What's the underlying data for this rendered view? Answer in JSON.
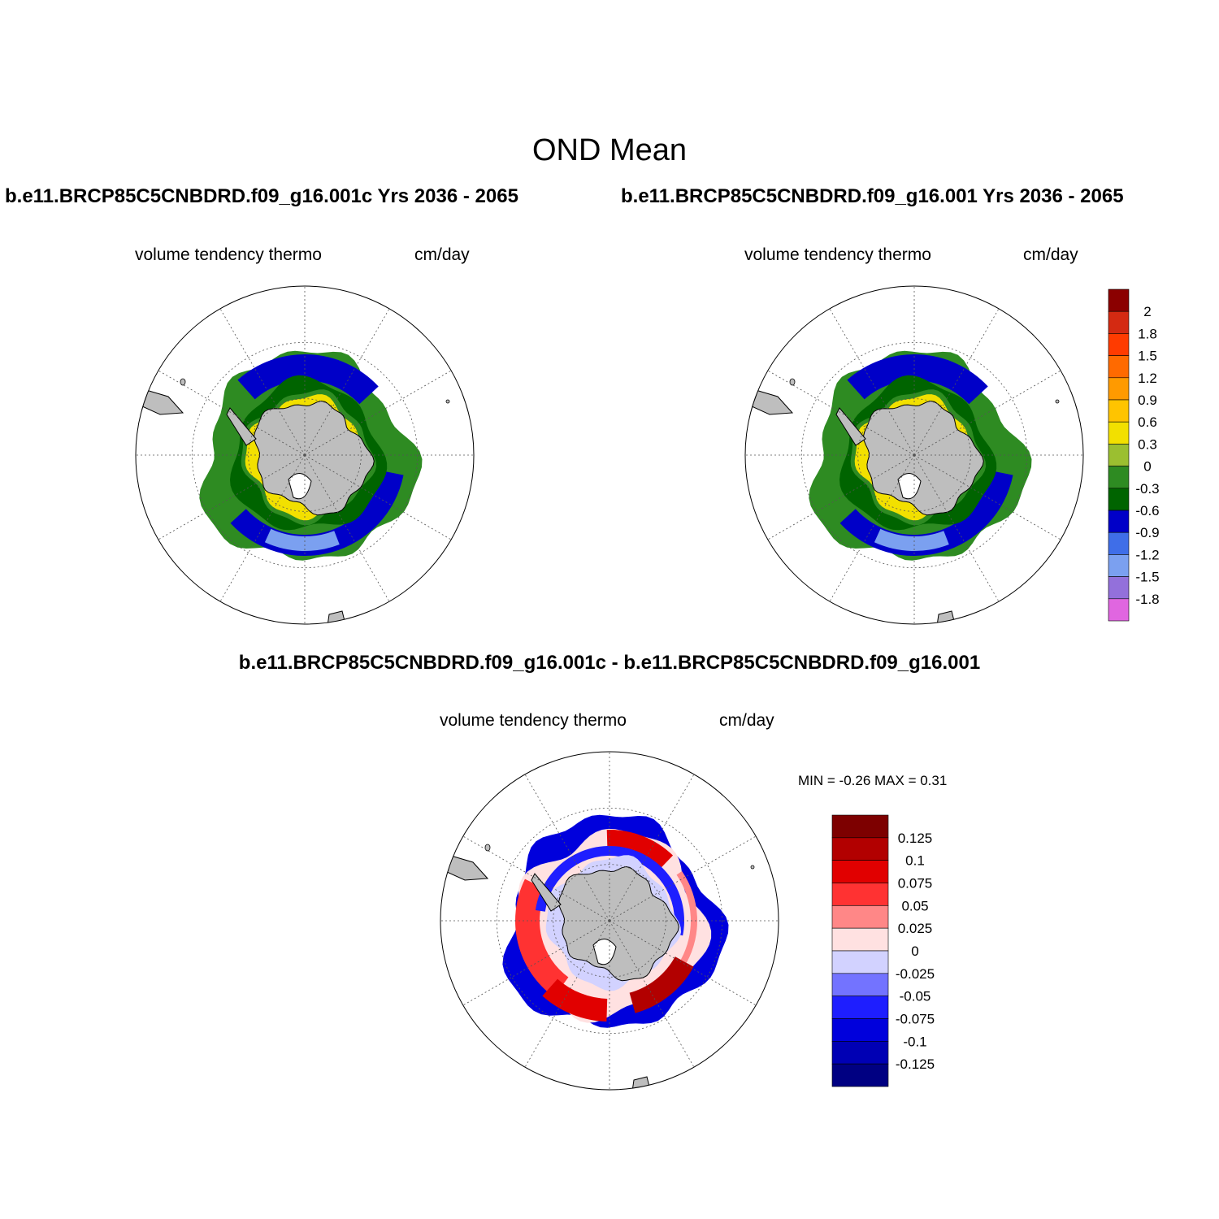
{
  "figure": {
    "title": "OND Mean"
  },
  "panels": [
    {
      "case_title": "b.e11.BRCP85C5CNBDRD.f09_g16.001c  Yrs 2036 - 2065",
      "variable_label": "volume tendency thermo",
      "units_label": "cm/day"
    },
    {
      "case_title": "b.e11.BRCP85C5CNBDRD.f09_g16.001  Yrs 2036 - 2065",
      "variable_label": "volume tendency thermo",
      "units_label": "cm/day"
    },
    {
      "case_title": "b.e11.BRCP85C5CNBDRD.f09_g16.001c - b.e11.BRCP85C5CNBDRD.f09_g16.001",
      "variable_label": "volume tendency thermo",
      "units_label": "cm/day",
      "min_max_label": "MIN =  -0.26 MAX =   0.31"
    }
  ],
  "colorbars": {
    "top": {
      "labels": [
        "2",
        "1.8",
        "1.5",
        "1.2",
        "0.9",
        "0.6",
        "0.3",
        "0",
        "-0.3",
        "-0.6",
        "-0.9",
        "-1.2",
        "-1.5",
        "-1.8"
      ],
      "colors": [
        "#8b0000",
        "#d42a12",
        "#ff3b00",
        "#ff6a00",
        "#ff9a00",
        "#ffc400",
        "#f2e000",
        "#9bbf30",
        "#2e8b22",
        "#006400",
        "#0000c8",
        "#3f6ee8",
        "#7ba0f0",
        "#9370db",
        "#e066e0"
      ]
    },
    "bottom": {
      "labels": [
        "0.125",
        "0.1",
        "0.075",
        "0.05",
        "0.025",
        "0",
        "-0.025",
        "-0.05",
        "-0.075",
        "-0.1",
        "-0.125"
      ],
      "colors": [
        "#7d0000",
        "#b20000",
        "#e10000",
        "#ff3232",
        "#ff8787",
        "#ffe1e1",
        "#d2d2ff",
        "#7373ff",
        "#1e1eff",
        "#0000dc",
        "#0000b4",
        "#000082"
      ]
    }
  },
  "map_colors": {
    "land": "#bebebe",
    "land_edge": "#000000",
    "grid": "#555555"
  }
}
